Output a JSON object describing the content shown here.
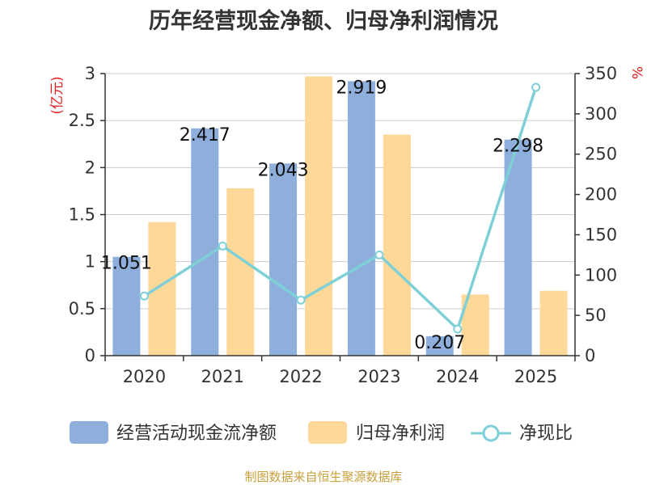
{
  "title": "历年经营现金净额、归母净利润情况",
  "source": "制图数据来自恒生聚源数据库",
  "chart_data": {
    "type": "bar",
    "title": "历年经营现金净额、归母净利润情况",
    "categories": [
      "2020",
      "2021",
      "2022",
      "2023",
      "2024",
      "2025"
    ],
    "left_axis": {
      "unit": "(亿元)",
      "ylim": [
        0,
        3
      ],
      "ticks": [
        "0",
        "0.5",
        "1",
        "1.5",
        "2",
        "2.5",
        "3"
      ]
    },
    "right_axis": {
      "unit": "%",
      "ylim": [
        0,
        350
      ],
      "ticks": [
        "0",
        "50",
        "100",
        "150",
        "200",
        "250",
        "300",
        "350"
      ]
    },
    "grid": true,
    "legend_position": "bottom",
    "series": [
      {
        "name": "经营活动现金流净额",
        "type": "bar",
        "axis": "left",
        "color": "#8eaedb",
        "values": [
          1.051,
          2.417,
          2.043,
          2.919,
          0.207,
          2.298
        ],
        "labels": [
          "1.051",
          "2.417",
          "2.043",
          "2.919",
          "0.207",
          "2.298"
        ]
      },
      {
        "name": "归母净利润",
        "type": "bar",
        "axis": "left",
        "color": "#fdd898",
        "values": [
          1.42,
          1.78,
          2.97,
          2.35,
          0.65,
          0.69
        ]
      },
      {
        "name": "净现比",
        "type": "line",
        "axis": "right",
        "color": "#7fd0d6",
        "values": [
          74,
          136,
          69,
          125,
          33,
          333
        ]
      }
    ]
  }
}
